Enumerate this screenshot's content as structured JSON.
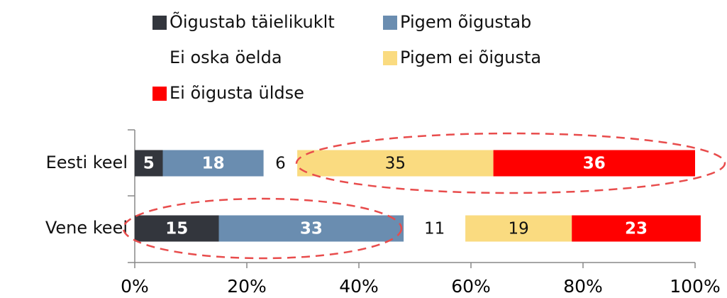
{
  "chart_data": {
    "type": "stacked-bar-horizontal",
    "categories": [
      "Eesti keel",
      "Vene keel"
    ],
    "series": [
      {
        "name": "Õigustab täielikuklt",
        "color": "#33363d",
        "values": [
          5,
          15
        ]
      },
      {
        "name": "Pigem õigustab",
        "color": "#6a8db0",
        "values": [
          18,
          33
        ]
      },
      {
        "name": "Ei oska öelda",
        "color": "#ffffff",
        "values": [
          6,
          11
        ]
      },
      {
        "name": "Pigem ei õigusta",
        "color": "#fadb80",
        "values": [
          35,
          19
        ]
      },
      {
        "name": "Ei õigusta üldse",
        "color": "#ff0000",
        "values": [
          36,
          23
        ]
      }
    ],
    "xlim": [
      0,
      100
    ],
    "xticks": [
      {
        "value": 0,
        "label": "0%"
      },
      {
        "value": 20,
        "label": "20%"
      },
      {
        "value": 40,
        "label": "40%"
      },
      {
        "value": 60,
        "label": "60%"
      },
      {
        "value": 80,
        "label": "80%"
      },
      {
        "value": 100,
        "label": "100%"
      }
    ],
    "legend": "top"
  }
}
